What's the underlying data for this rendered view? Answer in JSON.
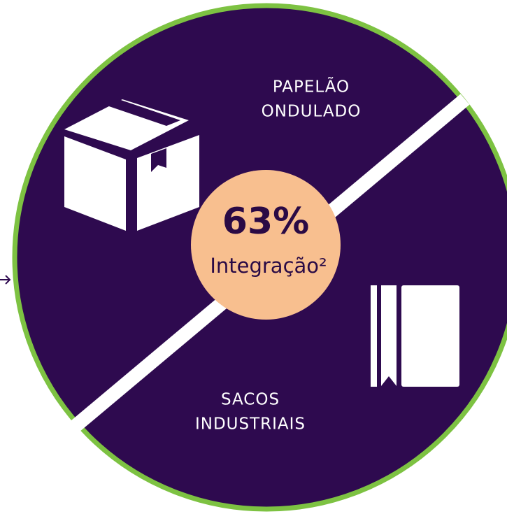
{
  "top_label": {
    "lines": [
      "PAPELÃO",
      "ONDULADO"
    ]
  },
  "bottom_label": {
    "lines": [
      "SACOS",
      "INDUSTRIAIS"
    ]
  },
  "center": {
    "value": "63%",
    "caption": "Integração²"
  }
}
